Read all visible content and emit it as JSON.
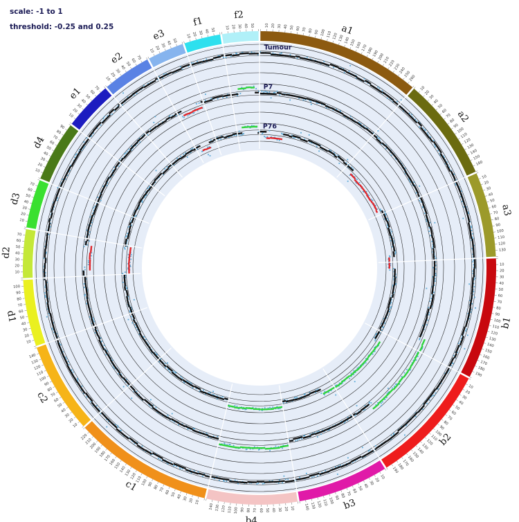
{
  "legend": {
    "scale": "scale: -1 to 1",
    "threshold": "threshold: -0.25 and 0.25"
  },
  "colors": {
    "background_band": "#e6edf8",
    "point": "#5aa9d6",
    "segment": "#111111",
    "gain": "#2fd43a",
    "loss": "#e0262a",
    "ring_line": "#222222"
  },
  "chart_data": {
    "type": "circos",
    "scale": [
      -1,
      1
    ],
    "thresholds": [
      -0.25,
      0.25
    ],
    "tracks": [
      {
        "name": "Tumour"
      },
      {
        "name": "P7"
      },
      {
        "name": "P76"
      }
    ],
    "segments": [
      {
        "id": "a1",
        "length": 270,
        "color": "#8c5a10"
      },
      {
        "id": "a2",
        "length": 170,
        "color": "#6b6b10"
      },
      {
        "id": "a3",
        "length": 140,
        "color": "#9c9a2a"
      },
      {
        "id": "b1",
        "length": 200,
        "color": "#c8080e"
      },
      {
        "id": "b2",
        "length": 200,
        "color": "#ee1c1c"
      },
      {
        "id": "b3",
        "length": 150,
        "color": "#e01aa8"
      },
      {
        "id": "b4",
        "length": 150,
        "color": "#f4c4c4"
      },
      {
        "id": "c1",
        "length": 230,
        "color": "#f0901a"
      },
      {
        "id": "c2",
        "length": 150,
        "color": "#f6b418"
      },
      {
        "id": "d1",
        "length": 110,
        "color": "#eaf020"
      },
      {
        "id": "d2",
        "length": 80,
        "color": "#c4e838"
      },
      {
        "id": "d3",
        "length": 80,
        "color": "#3ae030"
      },
      {
        "id": "d4",
        "length": 100,
        "color": "#4a7a18"
      },
      {
        "id": "e1",
        "length": 80,
        "color": "#1c1cc0"
      },
      {
        "id": "e2",
        "length": 80,
        "color": "#5a82e4"
      },
      {
        "id": "e3",
        "length": 60,
        "color": "#86b4ee"
      },
      {
        "id": "f1",
        "length": 60,
        "color": "#2ee0ee"
      },
      {
        "id": "f2",
        "length": 60,
        "color": "#b0f0f8"
      }
    ],
    "copy_number_regions": [
      {
        "track": "P7",
        "segment": "f2",
        "start": 20,
        "end": 55,
        "state": "gain"
      },
      {
        "track": "P7",
        "segment": "e3",
        "start": 5,
        "end": 45,
        "state": "loss"
      },
      {
        "track": "P7",
        "segment": "d2",
        "start": 20,
        "end": 60,
        "state": "loss"
      },
      {
        "track": "P7",
        "segment": "b1",
        "start": 180,
        "end": 200,
        "state": "gain"
      },
      {
        "track": "P7",
        "segment": "b2",
        "start": 0,
        "end": 150,
        "state": "gain"
      },
      {
        "track": "P7",
        "segment": "b4",
        "start": 0,
        "end": 150,
        "state": "gain"
      },
      {
        "track": "P76",
        "segment": "f2",
        "start": 20,
        "end": 55,
        "state": "gain"
      },
      {
        "track": "P76",
        "segment": "a1",
        "start": 10,
        "end": 60,
        "state": "loss"
      },
      {
        "track": "P76",
        "segment": "a2",
        "start": 20,
        "end": 160,
        "state": "loss"
      },
      {
        "track": "P76",
        "segment": "a3",
        "start": 120,
        "end": 140,
        "state": "loss"
      },
      {
        "track": "P76",
        "segment": "b1",
        "start": 0,
        "end": 25,
        "state": "loss"
      },
      {
        "track": "P76",
        "segment": "e3",
        "start": 10,
        "end": 40,
        "state": "loss"
      },
      {
        "track": "P76",
        "segment": "d2",
        "start": 5,
        "end": 70,
        "state": "loss"
      },
      {
        "track": "P76",
        "segment": "b2",
        "start": 30,
        "end": 200,
        "state": "gain"
      },
      {
        "track": "P76",
        "segment": "b4",
        "start": 0,
        "end": 150,
        "state": "gain"
      },
      {
        "track": "P76",
        "segment": "b3",
        "start": 0,
        "end": 40,
        "state": "gain"
      }
    ]
  }
}
